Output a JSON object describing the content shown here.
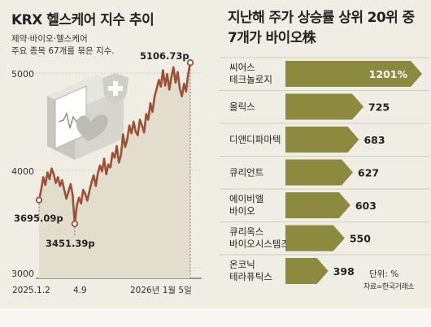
{
  "left": {
    "title": "KRX 헬스케어 지수 추이",
    "subtitle": "제약·바이오·헬스케어\n주요 종목 67개를 묶은 지수."
  },
  "right": {
    "title": "지난해 주가 상승률 상위 20위 중\n7개가 바이오株",
    "unit": "단위: %",
    "source": "자료=한국거래소"
  },
  "chart_data": [
    {
      "type": "line",
      "title": "KRX 헬스케어 지수 추이",
      "ylim": [
        3000,
        5300
      ],
      "y_ticks": [
        3000,
        4000,
        5000
      ],
      "x_tick_labels": [
        "2025.1.2",
        "4.9",
        "2026년 1월 5일"
      ],
      "annotations": [
        {
          "label": "3695.09p",
          "value": 3695.09,
          "date": "2025.1.2"
        },
        {
          "label": "3451.39p",
          "value": 3451.39,
          "date": "4.9"
        },
        {
          "label": "5106.73p",
          "value": 5106.73,
          "date": "2026년 1월 5일"
        }
      ],
      "series": [
        {
          "values": [
            3695.09,
            3800,
            3930,
            3850,
            3980,
            3910,
            4020,
            3960,
            3870,
            3930,
            3840,
            3900,
            3800,
            3710,
            3780,
            3860,
            3750,
            3451.39,
            3640,
            3720,
            3660,
            3800,
            3760,
            3690,
            3790,
            3880,
            3950,
            3840,
            3970,
            4050,
            3990,
            4120,
            3960,
            4060,
            4030,
            4180,
            4130,
            4250,
            4080,
            4160,
            4370,
            4240,
            4320,
            4460,
            4380,
            4500,
            4400,
            4360,
            4520,
            4460,
            4390,
            4580,
            4520,
            4690,
            4600,
            4760,
            4840,
            4930,
            4860,
            5030,
            4870,
            4990,
            4830,
            4960,
            5060,
            4900,
            5010,
            4840,
            4760,
            4890,
            4810,
            4990,
            5106.73
          ]
        }
      ],
      "colors": {
        "line": "#9c5034",
        "area": "#e3ddcd",
        "dot": "#ffffff"
      }
    },
    {
      "type": "bar",
      "title": "지난해 주가 상승률 상위 20위 중 7개가 바이오株",
      "categories": [
        "씨어스 테크놀로지",
        "올릭스",
        "디앤디파마텍",
        "큐리언트",
        "에이비엘 바이오",
        "큐리옥스 바이오시스템즈",
        "온코닉 테라퓨틱스"
      ],
      "values": [
        1201,
        725,
        683,
        627,
        603,
        550,
        398
      ],
      "value_labels": [
        "1201%",
        "725",
        "683",
        "627",
        "603",
        "550",
        "398"
      ],
      "category_lines": [
        [
          "씨어스",
          "테크놀로지"
        ],
        [
          "올릭스"
        ],
        [
          "디앤디파마텍"
        ],
        [
          "큐리언트"
        ],
        [
          "에이비엘",
          "바이오"
        ],
        [
          "큐리옥스",
          "바이오시스템즈"
        ],
        [
          "온코닉",
          "테라퓨틱스"
        ]
      ],
      "colors": {
        "bar": "#8c8a3e",
        "value_text": "#222222",
        "highlight_text": "#ffffff"
      }
    }
  ]
}
